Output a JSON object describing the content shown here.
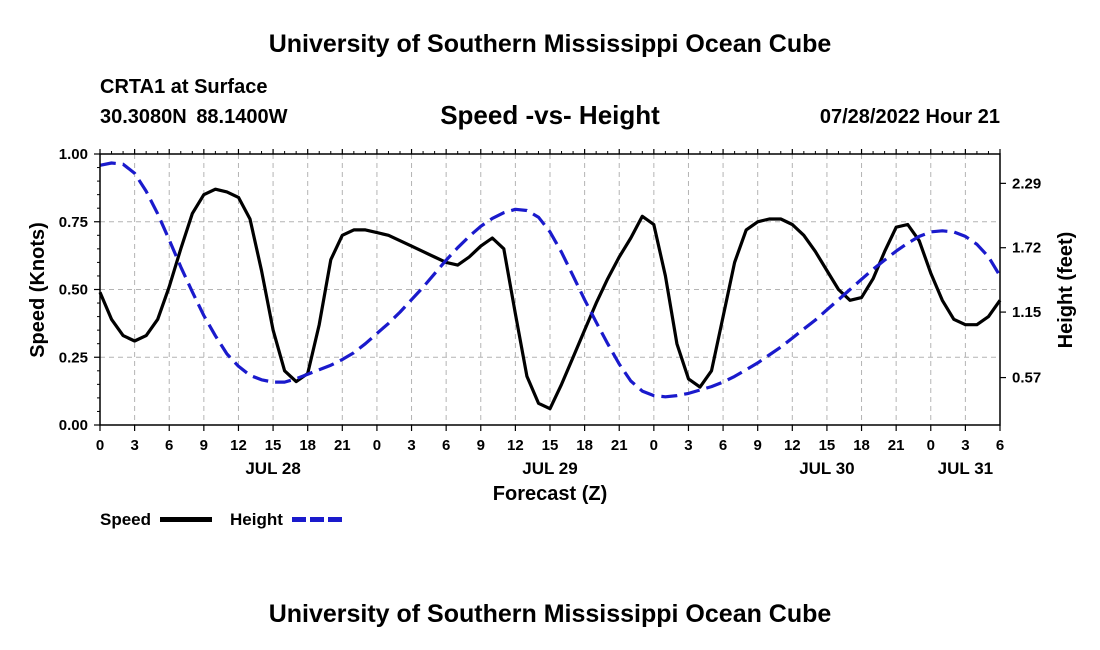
{
  "header": {
    "title": "University of Southern Mississippi Ocean Cube",
    "station": "CRTA1 at Surface",
    "latitude": "30.3080N",
    "longitude": "88.1400W",
    "datetime": "07/28/2022 Hour 21"
  },
  "footer": {
    "title": "University of Southern Mississippi Ocean Cube"
  },
  "legend": {
    "speed_label": "Speed",
    "height_label": "Height"
  },
  "chart_data": {
    "type": "line",
    "title": "Speed -vs- Height",
    "xlabel": "Forecast (Z)",
    "ylabel": "Speed (Knots)",
    "y2label": "Height (feet)",
    "xlim": [
      0,
      78
    ],
    "ylim": [
      0,
      1
    ],
    "y2lim": [
      0.15,
      2.55
    ],
    "yticks": [
      "0.00",
      "0.25",
      "0.50",
      "0.75",
      "1.00"
    ],
    "y2ticks": [
      "0.57",
      "1.15",
      "1.72",
      "2.29"
    ],
    "x_tick_labels": [
      "0",
      "3",
      "6",
      "9",
      "12",
      "15",
      "18",
      "21",
      "0",
      "3",
      "6",
      "9",
      "12",
      "15",
      "18",
      "21",
      "0",
      "3",
      "6",
      "9",
      "12",
      "15",
      "18",
      "21",
      "0",
      "3",
      "6"
    ],
    "date_labels": [
      {
        "hour": 15,
        "label": "JUL 28"
      },
      {
        "hour": 39,
        "label": "JUL 29"
      },
      {
        "hour": 63,
        "label": "JUL 30"
      },
      {
        "hour": 75,
        "label": "JUL 31"
      }
    ],
    "grid": true,
    "series": [
      {
        "name": "Speed",
        "axis": "left",
        "color": "#000000",
        "style": "solid",
        "x": [
          0,
          1,
          2,
          3,
          4,
          5,
          6,
          7,
          8,
          9,
          10,
          11,
          12,
          13,
          14,
          15,
          16,
          17,
          18,
          19,
          20,
          21,
          22,
          23,
          24,
          25,
          26,
          27,
          28,
          29,
          30,
          31,
          32,
          33,
          34,
          35,
          36,
          37,
          38,
          39,
          40,
          41,
          42,
          43,
          44,
          45,
          46,
          47,
          48,
          49,
          50,
          51,
          52,
          53,
          54,
          55,
          56,
          57,
          58,
          59,
          60,
          61,
          62,
          63,
          64,
          65,
          66,
          67,
          68,
          69,
          70,
          71,
          72,
          73,
          74,
          75,
          76,
          77,
          78
        ],
        "values": [
          0.49,
          0.39,
          0.33,
          0.31,
          0.33,
          0.39,
          0.51,
          0.65,
          0.78,
          0.85,
          0.87,
          0.86,
          0.84,
          0.76,
          0.57,
          0.35,
          0.2,
          0.16,
          0.19,
          0.37,
          0.61,
          0.7,
          0.72,
          0.72,
          0.71,
          0.7,
          0.68,
          0.66,
          0.64,
          0.62,
          0.6,
          0.59,
          0.62,
          0.66,
          0.69,
          0.65,
          0.41,
          0.18,
          0.08,
          0.06,
          0.15,
          0.25,
          0.35,
          0.45,
          0.54,
          0.62,
          0.69,
          0.77,
          0.74,
          0.55,
          0.3,
          0.17,
          0.14,
          0.2,
          0.4,
          0.6,
          0.72,
          0.75,
          0.76,
          0.76,
          0.74,
          0.7,
          0.64,
          0.57,
          0.5,
          0.46,
          0.47,
          0.54,
          0.64,
          0.73,
          0.74,
          0.68,
          0.56,
          0.46,
          0.39,
          0.37,
          0.37,
          0.4,
          0.46
        ]
      },
      {
        "name": "Height",
        "axis": "right",
        "color": "#1a1acc",
        "style": "dashed",
        "x": [
          0,
          1,
          2,
          3,
          4,
          5,
          6,
          7,
          8,
          9,
          10,
          11,
          12,
          13,
          14,
          15,
          16,
          17,
          18,
          19,
          20,
          21,
          22,
          23,
          24,
          25,
          26,
          27,
          28,
          29,
          30,
          31,
          32,
          33,
          34,
          35,
          36,
          37,
          38,
          39,
          40,
          41,
          42,
          43,
          44,
          45,
          46,
          47,
          48,
          49,
          50,
          51,
          52,
          53,
          54,
          55,
          56,
          57,
          58,
          59,
          60,
          61,
          62,
          63,
          64,
          65,
          66,
          67,
          68,
          69,
          70,
          71,
          72,
          73,
          74,
          75,
          76,
          77,
          78
        ],
        "values": [
          2.45,
          2.47,
          2.46,
          2.38,
          2.22,
          2.02,
          1.79,
          1.55,
          1.33,
          1.12,
          0.94,
          0.78,
          0.67,
          0.59,
          0.55,
          0.53,
          0.53,
          0.56,
          0.6,
          0.64,
          0.68,
          0.73,
          0.79,
          0.87,
          0.96,
          1.05,
          1.15,
          1.26,
          1.37,
          1.49,
          1.61,
          1.72,
          1.82,
          1.91,
          1.98,
          2.03,
          2.06,
          2.05,
          1.99,
          1.86,
          1.68,
          1.47,
          1.26,
          1.06,
          0.87,
          0.69,
          0.54,
          0.45,
          0.41,
          0.4,
          0.41,
          0.43,
          0.46,
          0.49,
          0.53,
          0.58,
          0.64,
          0.7,
          0.77,
          0.84,
          0.92,
          1.0,
          1.08,
          1.17,
          1.26,
          1.35,
          1.44,
          1.53,
          1.61,
          1.69,
          1.76,
          1.82,
          1.86,
          1.87,
          1.86,
          1.82,
          1.75,
          1.64,
          1.47
        ]
      }
    ]
  }
}
